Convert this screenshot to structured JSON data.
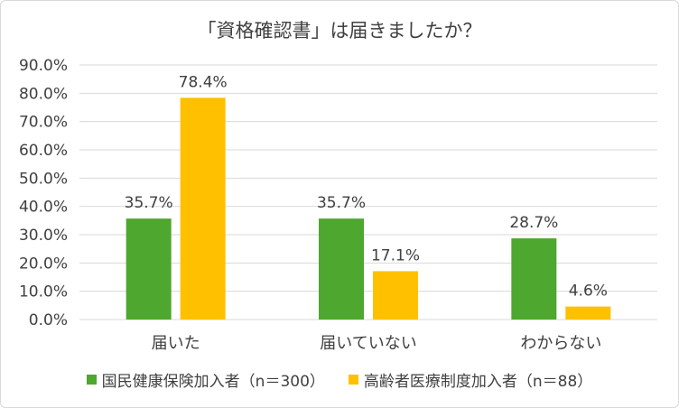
{
  "chart_data": {
    "type": "bar",
    "title": "「資格確認書」は届きましたか？",
    "categories": [
      "届いた",
      "届いていない",
      "わからない"
    ],
    "series": [
      {
        "name": "国民健康保険加入者（n＝300）",
        "values": [
          35.7,
          35.7,
          28.7
        ],
        "labels": [
          "35.7%",
          "35.7%",
          "28.7%"
        ],
        "color": "#4ea72e"
      },
      {
        "name": "高齢者医療制度加入者（n＝88）",
        "values": [
          78.4,
          17.1,
          4.6
        ],
        "labels": [
          "78.4%",
          "17.1%",
          "4.6%"
        ],
        "color": "#ffc000"
      }
    ],
    "ylim": [
      0,
      90
    ],
    "yticks": [
      "0.0%",
      "10.0%",
      "20.0%",
      "30.0%",
      "40.0%",
      "50.0%",
      "60.0%",
      "70.0%",
      "80.0%",
      "90.0%"
    ],
    "grid": true,
    "legend": "bottom"
  }
}
